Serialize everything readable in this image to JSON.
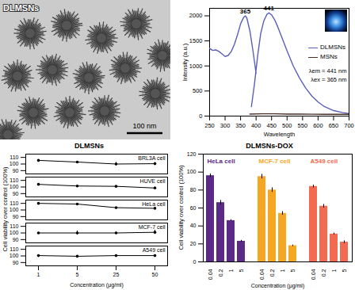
{
  "image": {
    "label": "DLMSNs",
    "scale_bar": "100 nm"
  },
  "chart_data": [
    {
      "type": "line",
      "x_label": "Wavelength",
      "y_label": "Intensity (a.u.)",
      "xlim": [
        250,
        700
      ],
      "xticks": [
        250,
        300,
        350,
        400,
        450,
        500,
        550,
        600,
        650,
        700
      ],
      "ylim": [
        0,
        2150
      ],
      "yticks": [
        0,
        500,
        1000,
        1500,
        2000
      ],
      "legend": "right",
      "series": [
        {
          "name": "DLMSNs",
          "color": "#5b5fb8",
          "x": [
            250,
            260,
            270,
            280,
            290,
            300,
            310,
            320,
            330,
            340,
            350,
            360,
            365,
            370,
            380,
            390,
            400,
            400,
            385,
            395,
            405,
            415,
            425,
            435,
            441,
            450,
            460,
            470,
            480,
            500,
            520,
            540,
            560,
            580,
            600,
            620,
            650,
            680,
            700
          ],
          "values": [
            1350,
            1310,
            1320,
            1290,
            1240,
            1190,
            1210,
            1290,
            1430,
            1620,
            1840,
            1970,
            2000,
            1960,
            1700,
            1300,
            850,
            null,
            190,
            650,
            1200,
            1650,
            1900,
            2030,
            2060,
            2020,
            1920,
            1780,
            1620,
            1300,
            1000,
            760,
            560,
            400,
            280,
            190,
            110,
            70,
            50
          ]
        },
        {
          "name": "MSNs",
          "color": "#4a2e22",
          "x": [
            380,
            420,
            460,
            500,
            540,
            580,
            620,
            660,
            700
          ],
          "values": [
            40,
            45,
            45,
            40,
            40,
            38,
            36,
            35,
            35
          ]
        }
      ],
      "annotations": [
        {
          "text": "365",
          "x": 365,
          "y": 2000
        },
        {
          "text": "441",
          "x": 441,
          "y": 2060
        },
        {
          "text": "λem = 441 nm",
          "x": 700,
          "y": 900
        },
        {
          "text": "λex = 365 nm",
          "x": 700,
          "y": 720
        }
      ]
    },
    {
      "type": "line",
      "title": "DLMSNs",
      "x_label": "Concentration (μg/ml)",
      "y_label": "Cell viability over control (100%)",
      "categories": [
        1,
        5,
        25,
        50
      ],
      "ylim": [
        85,
        115
      ],
      "yticks": [
        90,
        100,
        110
      ],
      "color": "#000000",
      "marker": "circle",
      "panels": [
        {
          "name": "BRL3A cell",
          "values": [
            105.5,
            103,
            100,
            100.5
          ],
          "errors": [
            0.5,
            0.8,
            2.5,
            1.8
          ]
        },
        {
          "name": "HUVE cell",
          "values": [
            104,
            101.5,
            101,
            98.5
          ],
          "errors": [
            0.6,
            0.8,
            0.6,
            1.8
          ]
        },
        {
          "name": "HeLa cell",
          "values": [
            110,
            109,
            103.5,
            102.5
          ],
          "errors": [
            0.5,
            0.5,
            0.5,
            0.5
          ]
        },
        {
          "name": "MCF-7 cell",
          "values": [
            100,
            100,
            100,
            101
          ],
          "errors": [
            1,
            3,
            1.5,
            3
          ]
        },
        {
          "name": "A549 cell",
          "values": [
            100.5,
            99.5,
            100.5,
            100.5
          ],
          "errors": [
            0.5,
            0.5,
            0.5,
            0.5
          ]
        }
      ]
    },
    {
      "type": "bar",
      "title": "DLMSNs-DOX",
      "x_label": "Concentration (μg/ml)",
      "y_label": "Cell viability over control (100%)",
      "categories": [
        0.04,
        0.2,
        1,
        5
      ],
      "ylim": [
        0,
        120
      ],
      "yticks": [
        0,
        20,
        40,
        60,
        80,
        100,
        120
      ],
      "series": [
        {
          "name": "HeLa cell",
          "color": "#5b2a86",
          "values": [
            96,
            66,
            46,
            23
          ],
          "errors": [
            2,
            2.5,
            1,
            1
          ]
        },
        {
          "name": "MCF-7 cell",
          "color": "#f5a623",
          "values": [
            95,
            80,
            54,
            18
          ],
          "errors": [
            2.5,
            2.5,
            2,
            0.8
          ]
        },
        {
          "name": "A549 cell",
          "color": "#f26a4f",
          "values": [
            84,
            62,
            31,
            22
          ],
          "errors": [
            1.5,
            2,
            1,
            1.5
          ]
        }
      ]
    }
  ]
}
